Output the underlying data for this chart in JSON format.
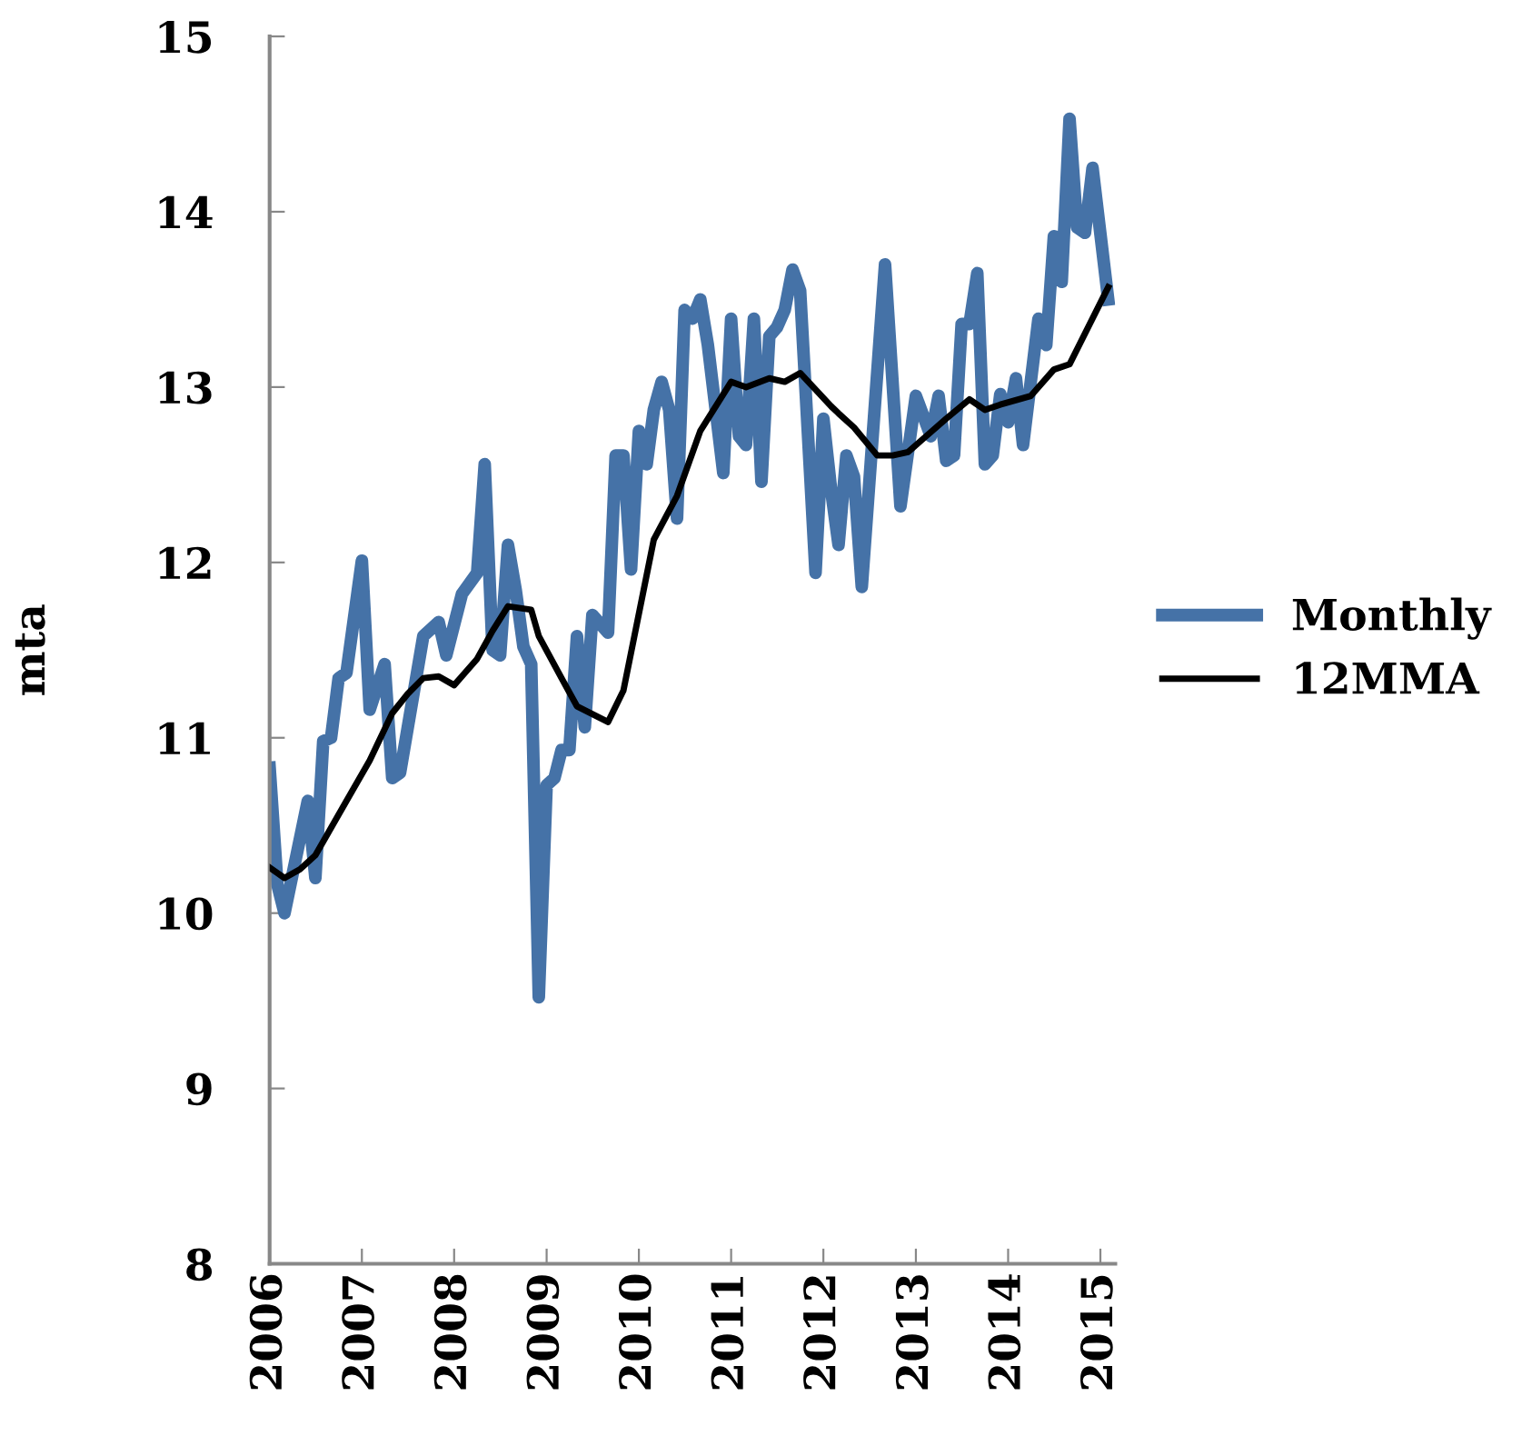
{
  "chart_data": {
    "type": "line",
    "ylabel": "mta",
    "ylim": [
      8,
      15
    ],
    "yticks": [
      8,
      9,
      10,
      11,
      12,
      13,
      14,
      15
    ],
    "xlim": [
      "2006-01",
      "2015-03"
    ],
    "xticks": [
      {
        "value": "2006-01",
        "label": "2006"
      },
      {
        "value": "2007-01",
        "label": "2007"
      },
      {
        "value": "2008-01",
        "label": "2008"
      },
      {
        "value": "2009-01",
        "label": "2009"
      },
      {
        "value": "2010-01",
        "label": "2010"
      },
      {
        "value": "2011-01",
        "label": "2011"
      },
      {
        "value": "2012-01",
        "label": "2012"
      },
      {
        "value": "2013-01",
        "label": "2013"
      },
      {
        "value": "2014-01",
        "label": "2014"
      },
      {
        "value": "2015-01",
        "label": "2015"
      }
    ],
    "grid": false,
    "legend": "right",
    "marker": "none",
    "line_style": "solid",
    "series": [
      {
        "name": "Monthly",
        "color": "#4572a7",
        "x": [
          "2006-01",
          "2006-02",
          "2006-03",
          "2006-06",
          "2006-07",
          "2006-08",
          "2006-09",
          "2006-10",
          "2006-11",
          "2007-01",
          "2007-02",
          "2007-04",
          "2007-05",
          "2007-06",
          "2007-09",
          "2007-11",
          "2007-12",
          "2008-02",
          "2008-04",
          "2008-05",
          "2008-06",
          "2008-07",
          "2008-08",
          "2008-09",
          "2008-10",
          "2008-11",
          "2008-12",
          "2009-01",
          "2009-02",
          "2009-03",
          "2009-04",
          "2009-05",
          "2009-06",
          "2009-07",
          "2009-09",
          "2009-10",
          "2009-11",
          "2009-12",
          "2010-01",
          "2010-02",
          "2010-03",
          "2010-04",
          "2010-05",
          "2010-06",
          "2010-07",
          "2010-08",
          "2010-09",
          "2010-10",
          "2010-12",
          "2011-01",
          "2011-02",
          "2011-03",
          "2011-04",
          "2011-05",
          "2011-06",
          "2011-07",
          "2011-08",
          "2011-09",
          "2011-10",
          "2011-12",
          "2012-01",
          "2012-02",
          "2012-03",
          "2012-04",
          "2012-05",
          "2012-06",
          "2012-09",
          "2012-11",
          "2013-01",
          "2013-03",
          "2013-04",
          "2013-05",
          "2013-06",
          "2013-07",
          "2013-08",
          "2013-09",
          "2013-10",
          "2013-11",
          "2013-12",
          "2014-01",
          "2014-02",
          "2014-03",
          "2014-05",
          "2014-06",
          "2014-07",
          "2014-08",
          "2014-09",
          "2014-10",
          "2014-11",
          "2014-12",
          "2015-02"
        ],
        "values": [
          10.83,
          10.16,
          10.0,
          10.64,
          10.2,
          10.98,
          11.0,
          11.34,
          11.37,
          12.01,
          11.16,
          11.42,
          10.77,
          10.8,
          11.58,
          11.66,
          11.47,
          11.82,
          11.94,
          12.56,
          11.5,
          11.47,
          12.1,
          11.84,
          11.52,
          11.42,
          9.52,
          10.73,
          10.77,
          10.93,
          10.93,
          11.58,
          11.06,
          11.7,
          11.6,
          12.61,
          12.61,
          11.96,
          12.75,
          12.56,
          12.87,
          13.03,
          12.87,
          12.25,
          13.44,
          13.39,
          13.5,
          13.24,
          12.51,
          13.39,
          12.72,
          12.67,
          13.39,
          12.46,
          13.29,
          13.34,
          13.44,
          13.67,
          13.55,
          11.94,
          12.82,
          12.41,
          12.1,
          12.61,
          12.49,
          11.86,
          13.7,
          12.32,
          12.95,
          12.72,
          12.95,
          12.58,
          12.61,
          13.36,
          13.36,
          13.65,
          12.56,
          12.61,
          12.96,
          12.8,
          13.05,
          12.67,
          13.39,
          13.24,
          13.86,
          13.6,
          14.53,
          13.91,
          13.88,
          14.25,
          13.5
        ]
      },
      {
        "name": "12MMA",
        "color": "#000000",
        "x": [
          "2006-01",
          "2006-03",
          "2006-05",
          "2006-07",
          "2006-11",
          "2007-02",
          "2007-05",
          "2007-07",
          "2007-09",
          "2007-11",
          "2008-01",
          "2008-04",
          "2008-06",
          "2008-08",
          "2008-11",
          "2008-12",
          "2009-03",
          "2009-05",
          "2009-09",
          "2009-11",
          "2010-03",
          "2010-06",
          "2010-09",
          "2011-01",
          "2011-03",
          "2011-06",
          "2011-08",
          "2011-10",
          "2012-02",
          "2012-03",
          "2012-05",
          "2012-08",
          "2012-10",
          "2012-12",
          "2013-05",
          "2013-08",
          "2013-10",
          "2013-12",
          "2014-04",
          "2014-07",
          "2014-09",
          "2015-02"
        ],
        "values": [
          10.26,
          10.2,
          10.25,
          10.33,
          10.64,
          10.87,
          11.14,
          11.25,
          11.34,
          11.35,
          11.3,
          11.45,
          11.61,
          11.75,
          11.73,
          11.58,
          11.34,
          11.18,
          11.09,
          11.27,
          12.13,
          12.38,
          12.75,
          13.03,
          13.0,
          13.05,
          13.03,
          13.08,
          12.89,
          12.85,
          12.77,
          12.61,
          12.61,
          12.63,
          12.82,
          12.93,
          12.87,
          12.9,
          12.95,
          13.1,
          13.13,
          13.57
        ]
      }
    ]
  }
}
